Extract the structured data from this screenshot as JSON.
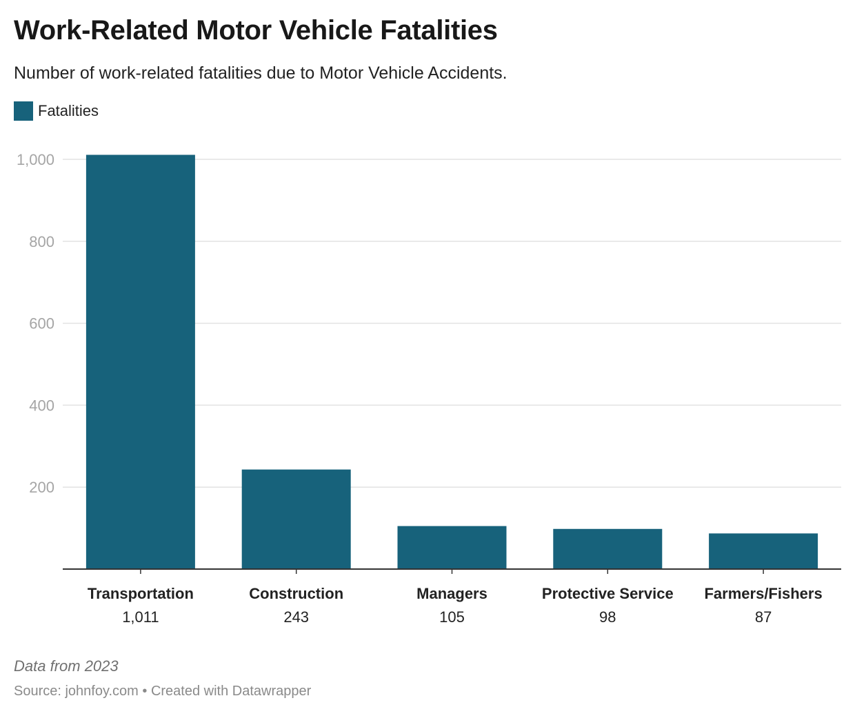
{
  "colors": {
    "bar": "#17627b",
    "grid": "#e2e2e2",
    "axis": "#333333",
    "tick_label": "#a5a5a5"
  },
  "title": "Work-Related Motor Vehicle Fatalities",
  "subtitle": "Number of work-related fatalities due to Motor Vehicle Accidents.",
  "footer": {
    "note": "Data from 2023",
    "source": "Source: johnfoy.com • Created with Datawrapper"
  },
  "chart_data": {
    "type": "bar",
    "title": "Work-Related Motor Vehicle Fatalities",
    "subtitle": "Number of work-related fatalities due to Motor Vehicle Accidents.",
    "xlabel": "",
    "ylabel": "",
    "categories": [
      "Transportation",
      "Construction",
      "Managers",
      "Protective Service",
      "Farmers/Fishers"
    ],
    "series": [
      {
        "name": "Fatalities",
        "values": [
          1011,
          243,
          105,
          98,
          87
        ]
      }
    ],
    "value_labels": [
      "1,011",
      "243",
      "105",
      "98",
      "87"
    ],
    "ylim": [
      0,
      1000
    ],
    "yticks": [
      200,
      400,
      600,
      800,
      1000
    ],
    "ytick_labels": [
      "200",
      "400",
      "600",
      "800",
      "1,000"
    ],
    "grid": true,
    "legend": "top-left"
  }
}
